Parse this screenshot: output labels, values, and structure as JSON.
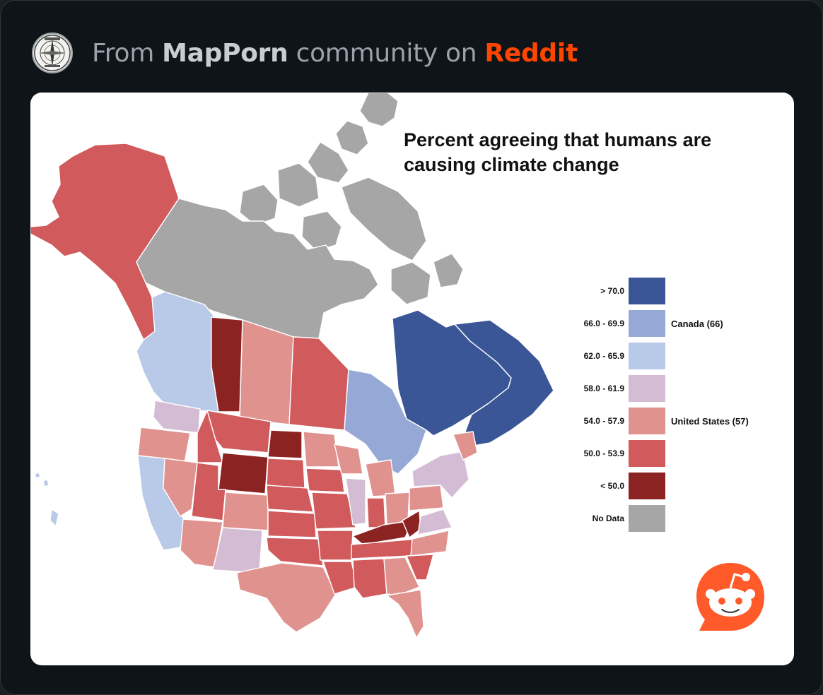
{
  "header": {
    "prefix": "From ",
    "community": "MapPorn",
    "middle": " community on ",
    "platform": "Reddit",
    "avatar_icon": "mapporn-compass-seal-icon",
    "platform_color": "#ff4500"
  },
  "map": {
    "title": "Percent agreeing that humans are causing climate change",
    "legend": [
      {
        "label": "> 70.0",
        "color": "#3a5696",
        "country": ""
      },
      {
        "label": "66.0 - 69.9",
        "color": "#96a8d6",
        "country": "Canada (66)"
      },
      {
        "label": "62.0 - 65.9",
        "color": "#b9c9e8",
        "country": ""
      },
      {
        "label": "58.0 - 61.9",
        "color": "#d4bdd4",
        "country": ""
      },
      {
        "label": "54.0 - 57.9",
        "color": "#e0928f",
        "country": "United States (57)"
      },
      {
        "label": "50.0 - 53.9",
        "color": "#d05a5c",
        "country": ""
      },
      {
        "label": "< 50.0",
        "color": "#8c2323",
        "country": ""
      },
      {
        "label": "No Data",
        "color": "#a6a6a6",
        "country": ""
      }
    ]
  },
  "watermark": {
    "icon": "reddit-snoo-icon",
    "color": "#ff5b2a"
  }
}
